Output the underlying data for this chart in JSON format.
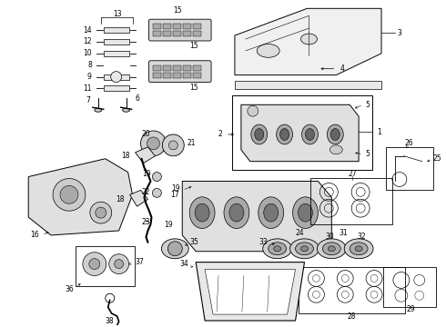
{
  "bg": "#ffffff",
  "lc": "#000000",
  "fs": 5.5,
  "fw": 4.9,
  "fh": 3.6,
  "dpi": 100
}
